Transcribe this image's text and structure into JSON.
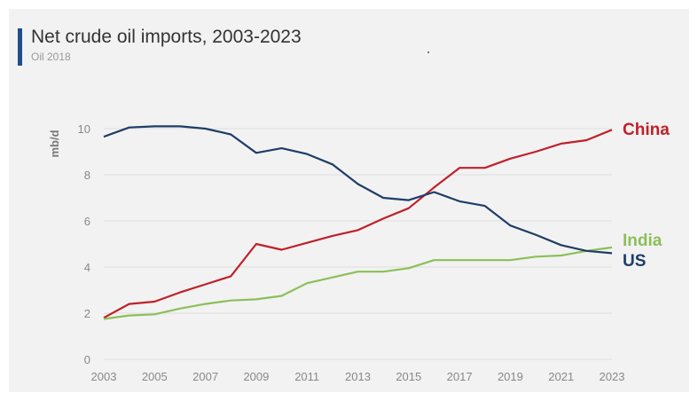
{
  "header": {
    "title": "Net crude oil imports, 2003-2023",
    "subtitle": "Oil 2018"
  },
  "colors": {
    "accent": "#1f4e8c",
    "background": "#f2f2f2"
  },
  "chart_data": {
    "type": "line",
    "title": "Net crude oil imports, 2003-2023",
    "subtitle": "Oil 2018",
    "xlabel": "",
    "ylabel": "mb/d",
    "xlim": [
      2003,
      2023
    ],
    "ylim": [
      0,
      10
    ],
    "xticks": [
      "2003",
      "2005",
      "2007",
      "2009",
      "2011",
      "2013",
      "2015",
      "2017",
      "2019",
      "2021",
      "2023"
    ],
    "yticks": [
      "0",
      "2",
      "4",
      "6",
      "8",
      "10"
    ],
    "grid": true,
    "legend": "end-of-line labels",
    "x": [
      2003,
      2004,
      2005,
      2006,
      2007,
      2008,
      2009,
      2010,
      2011,
      2012,
      2013,
      2014,
      2015,
      2016,
      2017,
      2018,
      2019,
      2020,
      2021,
      2022,
      2023
    ],
    "series": [
      {
        "name": "China",
        "color": "#c0202a",
        "values": [
          1.8,
          2.4,
          2.5,
          2.9,
          3.25,
          3.6,
          5.0,
          4.75,
          5.05,
          5.35,
          5.6,
          6.1,
          6.55,
          7.45,
          8.3,
          8.3,
          8.7,
          9.0,
          9.35,
          9.5,
          9.95
        ]
      },
      {
        "name": "India",
        "color": "#8cbf58",
        "values": [
          1.75,
          1.9,
          1.95,
          2.2,
          2.4,
          2.55,
          2.6,
          2.75,
          3.3,
          3.55,
          3.8,
          3.8,
          3.95,
          4.3,
          4.3,
          4.3,
          4.3,
          4.45,
          4.5,
          4.7,
          4.85
        ]
      },
      {
        "name": "US",
        "color": "#1f3d66",
        "values": [
          9.65,
          10.05,
          10.1,
          10.1,
          10.0,
          9.75,
          8.95,
          9.15,
          8.9,
          8.45,
          7.6,
          7.0,
          6.9,
          7.25,
          6.85,
          6.65,
          5.8,
          5.4,
          4.95,
          4.7,
          4.6
        ]
      }
    ]
  }
}
